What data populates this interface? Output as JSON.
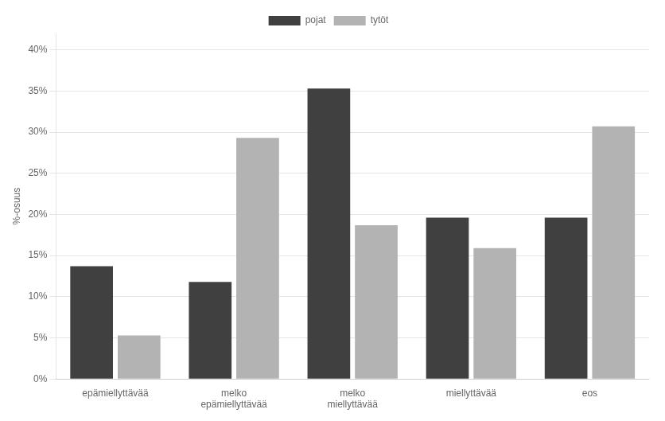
{
  "chart_data": {
    "type": "bar",
    "categories": [
      "epämiellyttävää",
      "melko\nepämiellyttävää",
      "melko\nmiellyttävää",
      "miellyttävää",
      "eos"
    ],
    "series": [
      {
        "name": "pojat",
        "color": "#404040",
        "values": [
          13.7,
          11.8,
          35.3,
          19.6,
          19.6
        ]
      },
      {
        "name": "tytöt",
        "color": "#b3b3b3",
        "values": [
          5.3,
          29.3,
          18.7,
          15.9,
          30.7
        ]
      }
    ],
    "ylabel": "%-osuus",
    "ylim": [
      0,
      42
    ],
    "yticks": [
      {
        "value": 0,
        "label": "0%"
      },
      {
        "value": 5,
        "label": "5%"
      },
      {
        "value": 10,
        "label": "10%"
      },
      {
        "value": 15,
        "label": "15%"
      },
      {
        "value": 20,
        "label": "20%"
      },
      {
        "value": 25,
        "label": "25%"
      },
      {
        "value": 30,
        "label": "30%"
      },
      {
        "value": 35,
        "label": "35%"
      },
      {
        "value": 40,
        "label": "40%"
      }
    ],
    "grid": true,
    "legend": "top"
  }
}
